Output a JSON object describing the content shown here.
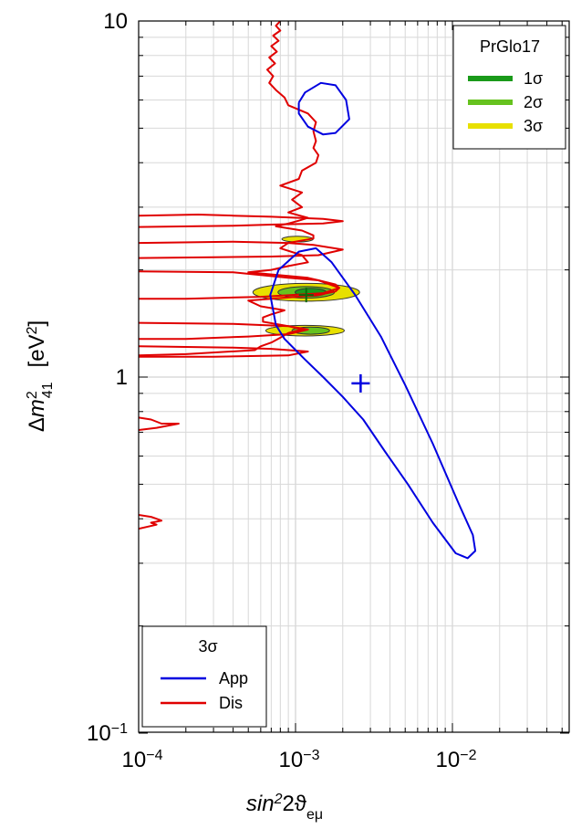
{
  "chart_data": {
    "type": "contour",
    "xaxis": {
      "label": "sin²2ϑ_eμ",
      "scale": "log",
      "range": [
        0.0001,
        0.05
      ],
      "ticks": [
        {
          "value": 0.0001,
          "base": "10",
          "exp": "−4"
        },
        {
          "value": 0.001,
          "base": "10",
          "exp": "−3"
        },
        {
          "value": 0.01,
          "base": "10",
          "exp": "−2"
        }
      ]
    },
    "yaxis": {
      "label": "Δm²₄₁ [eV²]",
      "scale": "log",
      "range": [
        0.1,
        10
      ],
      "ticks": [
        {
          "value": 10,
          "base": "10",
          "exp": ""
        },
        {
          "value": 1,
          "base": "1",
          "exp": ""
        },
        {
          "value": 0.1,
          "base": "10",
          "exp": "−1"
        }
      ]
    },
    "grid": true,
    "colors": {
      "app": "#0000e0",
      "dis": "#e00000",
      "sigma1": "#1a9a1a",
      "sigma2": "#66c21e",
      "sigma3": "#e8e000"
    },
    "legend_top_right": {
      "title": "PrGlo17",
      "entries": [
        {
          "label": "1σ",
          "color": "#1a9a1a"
        },
        {
          "label": "2σ",
          "color": "#66c21e"
        },
        {
          "label": "3σ",
          "color": "#e8e000"
        }
      ]
    },
    "legend_bottom_left": {
      "title": "3σ",
      "entries": [
        {
          "label": "App",
          "color": "#0000e0"
        },
        {
          "label": "Dis",
          "color": "#e00000"
        }
      ]
    },
    "best_fit_app": {
      "x": 0.0026,
      "y": 0.96
    },
    "best_fit_global": {
      "x": 0.00117,
      "y": 1.7
    },
    "app_contours": [
      {
        "name": "app-large-region",
        "points": [
          [
            0.00075,
            1.4
          ],
          [
            0.00069,
            1.7
          ],
          [
            0.00078,
            2.0
          ],
          [
            0.00105,
            2.25
          ],
          [
            0.00135,
            2.3
          ],
          [
            0.0017,
            2.1
          ],
          [
            0.0024,
            1.7
          ],
          [
            0.0035,
            1.3
          ],
          [
            0.005,
            0.95
          ],
          [
            0.0075,
            0.65
          ],
          [
            0.011,
            0.44
          ],
          [
            0.0135,
            0.36
          ],
          [
            0.014,
            0.325
          ],
          [
            0.0125,
            0.31
          ],
          [
            0.0105,
            0.32
          ],
          [
            0.0075,
            0.39
          ],
          [
            0.0052,
            0.5
          ],
          [
            0.0037,
            0.62
          ],
          [
            0.0027,
            0.76
          ],
          [
            0.002,
            0.88
          ],
          [
            0.0015,
            1.0
          ],
          [
            0.00115,
            1.12
          ],
          [
            0.00085,
            1.28
          ],
          [
            0.00075,
            1.4
          ]
        ]
      },
      {
        "name": "app-small-island",
        "points": [
          [
            0.00105,
            5.9
          ],
          [
            0.00115,
            6.3
          ],
          [
            0.00145,
            6.7
          ],
          [
            0.0018,
            6.6
          ],
          [
            0.0021,
            6.0
          ],
          [
            0.0022,
            5.3
          ],
          [
            0.0018,
            4.85
          ],
          [
            0.0015,
            4.8
          ],
          [
            0.0012,
            5.05
          ],
          [
            0.00105,
            5.5
          ],
          [
            0.00105,
            5.9
          ]
        ]
      }
    ],
    "dis_contours": [
      {
        "name": "dis-right-boundary",
        "points": [
          [
            0.0008,
            10
          ],
          [
            0.00075,
            9.7
          ],
          [
            0.0008,
            9.4
          ],
          [
            0.00072,
            9.1
          ],
          [
            0.00078,
            8.8
          ],
          [
            0.0007,
            8.5
          ],
          [
            0.00076,
            8.2
          ],
          [
            0.00068,
            7.9
          ],
          [
            0.00074,
            7.6
          ],
          [
            0.00066,
            7.3
          ],
          [
            0.00072,
            7.0
          ],
          [
            0.00068,
            6.7
          ],
          [
            0.00075,
            6.4
          ],
          [
            0.00085,
            6.1
          ],
          [
            0.0009,
            5.8
          ],
          [
            0.0012,
            5.5
          ],
          [
            0.00135,
            5.2
          ],
          [
            0.0013,
            4.9
          ],
          [
            0.00135,
            4.6
          ],
          [
            0.0013,
            4.4
          ],
          [
            0.0014,
            4.2
          ],
          [
            0.00135,
            4.0
          ],
          [
            0.0011,
            3.8
          ],
          [
            0.00105,
            3.6
          ],
          [
            0.0008,
            3.45
          ],
          [
            0.0011,
            3.3
          ],
          [
            0.00095,
            3.15
          ],
          [
            0.0011,
            3.0
          ],
          [
            0.0009,
            2.9
          ],
          [
            0.0012,
            2.8
          ],
          [
            0.00105,
            2.75
          ],
          [
            0.0009,
            2.7
          ],
          [
            0.00075,
            2.65
          ],
          [
            0.0011,
            2.58
          ],
          [
            0.0013,
            2.5
          ],
          [
            0.0013,
            2.45
          ],
          [
            0.0009,
            2.38
          ],
          [
            0.0008,
            2.3
          ],
          [
            0.0011,
            2.2
          ],
          [
            0.0012,
            2.1
          ],
          [
            0.0009,
            2.05
          ],
          [
            0.0007,
            2.0
          ],
          [
            0.0005,
            1.97
          ],
          [
            0.0012,
            1.9
          ],
          [
            0.0014,
            1.87
          ],
          [
            0.0018,
            1.82
          ],
          [
            0.0019,
            1.78
          ],
          [
            0.0018,
            1.74
          ],
          [
            0.0014,
            1.7
          ],
          [
            0.0007,
            1.66
          ],
          [
            0.0005,
            1.64
          ],
          [
            0.0006,
            1.58
          ],
          [
            0.00085,
            1.54
          ],
          [
            0.0007,
            1.5
          ],
          [
            0.00062,
            1.47
          ],
          [
            0.00062,
            1.43
          ],
          [
            0.0009,
            1.39
          ],
          [
            0.0011,
            1.36
          ],
          [
            0.0009,
            1.33
          ],
          [
            0.0008,
            1.29
          ],
          [
            0.0007,
            1.25
          ],
          [
            0.0006,
            1.22
          ],
          [
            0.00055,
            1.19
          ],
          [
            0.0002,
            1.16
          ],
          [
            0.0001,
            1.15
          ]
        ]
      },
      {
        "name": "dis-spike-1",
        "points": [
          [
            0.0001,
            2.84
          ],
          [
            0.00024,
            2.86
          ],
          [
            0.0004,
            2.84
          ],
          [
            0.0007,
            2.82
          ],
          [
            0.0015,
            2.78
          ],
          [
            0.002,
            2.74
          ],
          [
            0.0015,
            2.7
          ],
          [
            0.0007,
            2.68
          ],
          [
            0.0004,
            2.66
          ],
          [
            0.0001,
            2.64
          ]
        ]
      },
      {
        "name": "dis-spike-2",
        "points": [
          [
            0.0001,
            2.38
          ],
          [
            0.0004,
            2.4
          ],
          [
            0.0009,
            2.38
          ],
          [
            0.0013,
            2.35
          ],
          [
            0.002,
            2.28
          ],
          [
            0.0014,
            2.2
          ],
          [
            0.0007,
            2.18
          ],
          [
            0.0003,
            2.17
          ],
          [
            0.0001,
            2.16
          ]
        ]
      },
      {
        "name": "dis-spike-3",
        "points": [
          [
            0.0001,
            1.98
          ],
          [
            0.0004,
            1.97
          ],
          [
            0.0009,
            1.9
          ],
          [
            0.0014,
            1.87
          ],
          [
            0.0019,
            1.78
          ],
          [
            0.0015,
            1.72
          ],
          [
            0.0006,
            1.68
          ],
          [
            0.0002,
            1.66
          ],
          [
            0.0001,
            1.66
          ]
        ]
      },
      {
        "name": "dis-spike-4",
        "points": [
          [
            0.0001,
            1.42
          ],
          [
            0.0004,
            1.41
          ],
          [
            0.0009,
            1.39
          ],
          [
            0.0012,
            1.36
          ],
          [
            0.0009,
            1.32
          ],
          [
            0.0005,
            1.3
          ],
          [
            0.0002,
            1.28
          ],
          [
            0.0001,
            1.28
          ]
        ]
      },
      {
        "name": "dis-spike-5",
        "points": [
          [
            0.0001,
            1.22
          ],
          [
            0.0004,
            1.21
          ],
          [
            0.0007,
            1.2
          ],
          [
            0.0012,
            1.18
          ],
          [
            0.0009,
            1.15
          ],
          [
            0.0003,
            1.14
          ],
          [
            0.0001,
            1.14
          ]
        ]
      },
      {
        "name": "dis-low-1",
        "points": [
          [
            0.0001,
            0.77
          ],
          [
            0.00012,
            0.76
          ],
          [
            0.00014,
            0.74
          ],
          [
            0.00018,
            0.74
          ],
          [
            0.00013,
            0.72
          ],
          [
            0.0001,
            0.71
          ]
        ]
      },
      {
        "name": "dis-low-2",
        "points": [
          [
            0.0001,
            0.41
          ],
          [
            0.00012,
            0.405
          ],
          [
            0.00013,
            0.4
          ],
          [
            0.00014,
            0.395
          ],
          [
            0.00012,
            0.39
          ],
          [
            0.00013,
            0.385
          ],
          [
            0.0001,
            0.375
          ]
        ]
      }
    ],
    "filled_regions": [
      {
        "name": "sigma3-main",
        "level": "3σ",
        "center": [
          0.00117,
          1.73
        ],
        "rx_dec": 0.34,
        "ry_dec": 0.025
      },
      {
        "name": "sigma2-main",
        "level": "2σ",
        "center": [
          0.00117,
          1.73
        ],
        "rx_dec": 0.18,
        "ry_dec": 0.016
      },
      {
        "name": "sigma1-main",
        "level": "1σ",
        "center": [
          0.00125,
          1.73
        ],
        "rx_dec": 0.1,
        "ry_dec": 0.011
      },
      {
        "name": "sigma3-low",
        "level": "3σ",
        "center": [
          0.00115,
          1.35
        ],
        "rx_dec": 0.25,
        "ry_dec": 0.015
      },
      {
        "name": "sigma2-low",
        "level": "2σ",
        "center": [
          0.00125,
          1.35
        ],
        "rx_dec": 0.12,
        "ry_dec": 0.01
      },
      {
        "name": "sigma3-high",
        "level": "3σ",
        "center": [
          0.00103,
          2.44
        ],
        "rx_dec": 0.1,
        "ry_dec": 0.008
      }
    ]
  }
}
